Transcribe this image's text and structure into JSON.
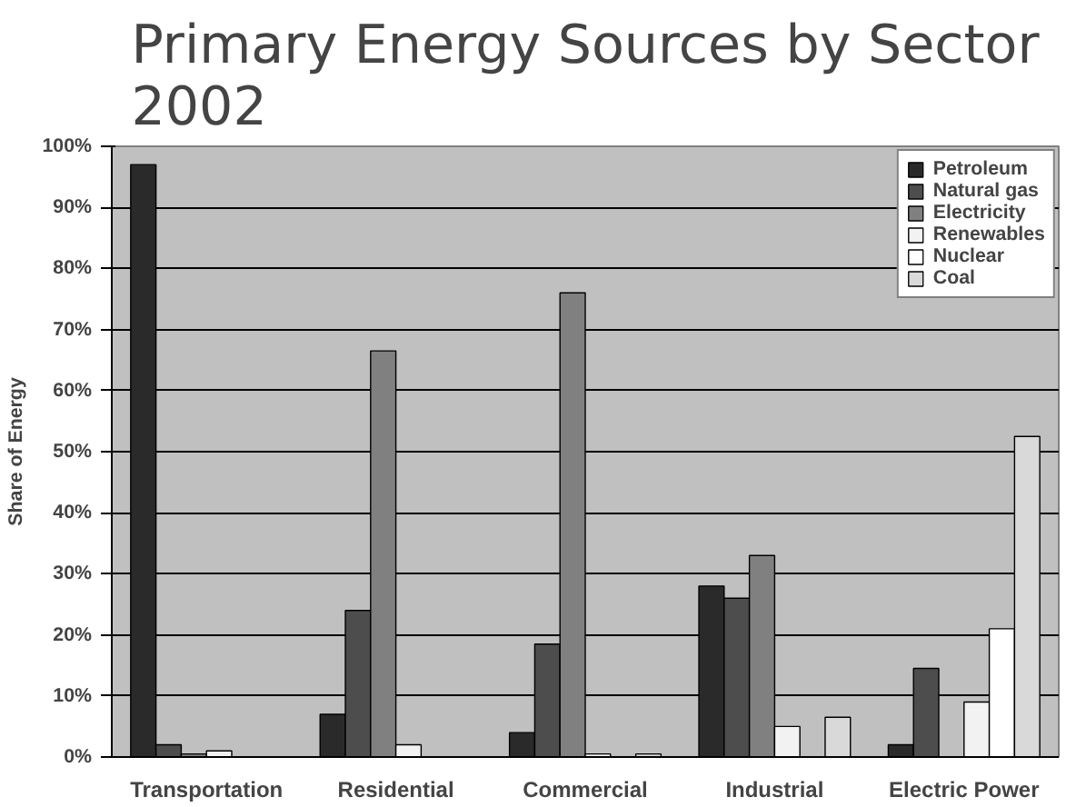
{
  "chart_data": {
    "type": "bar",
    "title": "Primary Energy Sources by Sector 2002",
    "ylabel": "Share of Energy",
    "categories": [
      "Transportation",
      "Residential",
      "Commercial",
      "Industrial",
      "Electric Power"
    ],
    "series": [
      {
        "name": "Petroleum",
        "color": "#2a2a2a",
        "values": [
          97,
          7,
          4,
          28,
          2
        ]
      },
      {
        "name": "Natural gas",
        "color": "#4d4d4d",
        "values": [
          2,
          24,
          18.5,
          26,
          14.5
        ]
      },
      {
        "name": "Electricity",
        "color": "#808080",
        "values": [
          0.5,
          66.5,
          76,
          33,
          null
        ]
      },
      {
        "name": "Renewables",
        "color": "#f2f2f2",
        "values": [
          1,
          2,
          0.5,
          5,
          9
        ]
      },
      {
        "name": "Nuclear",
        "color": "#ffffff",
        "values": [
          null,
          null,
          null,
          null,
          21
        ]
      },
      {
        "name": "Coal",
        "color": "#d9d9d9",
        "values": [
          null,
          null,
          0.5,
          6.5,
          52.5
        ]
      }
    ],
    "ylim": [
      0,
      100
    ],
    "yticks": [
      {
        "value": 0,
        "label": "0%"
      },
      {
        "value": 10,
        "label": "10%"
      },
      {
        "value": 20,
        "label": "20%"
      },
      {
        "value": 30,
        "label": "30%"
      },
      {
        "value": 40,
        "label": "40%"
      },
      {
        "value": 50,
        "label": "50%"
      },
      {
        "value": 60,
        "label": "60%"
      },
      {
        "value": 70,
        "label": "70%"
      },
      {
        "value": 80,
        "label": "80%"
      },
      {
        "value": 90,
        "label": "90%"
      },
      {
        "value": 100,
        "label": "100%"
      }
    ],
    "grid": "y",
    "legend": "top right"
  }
}
